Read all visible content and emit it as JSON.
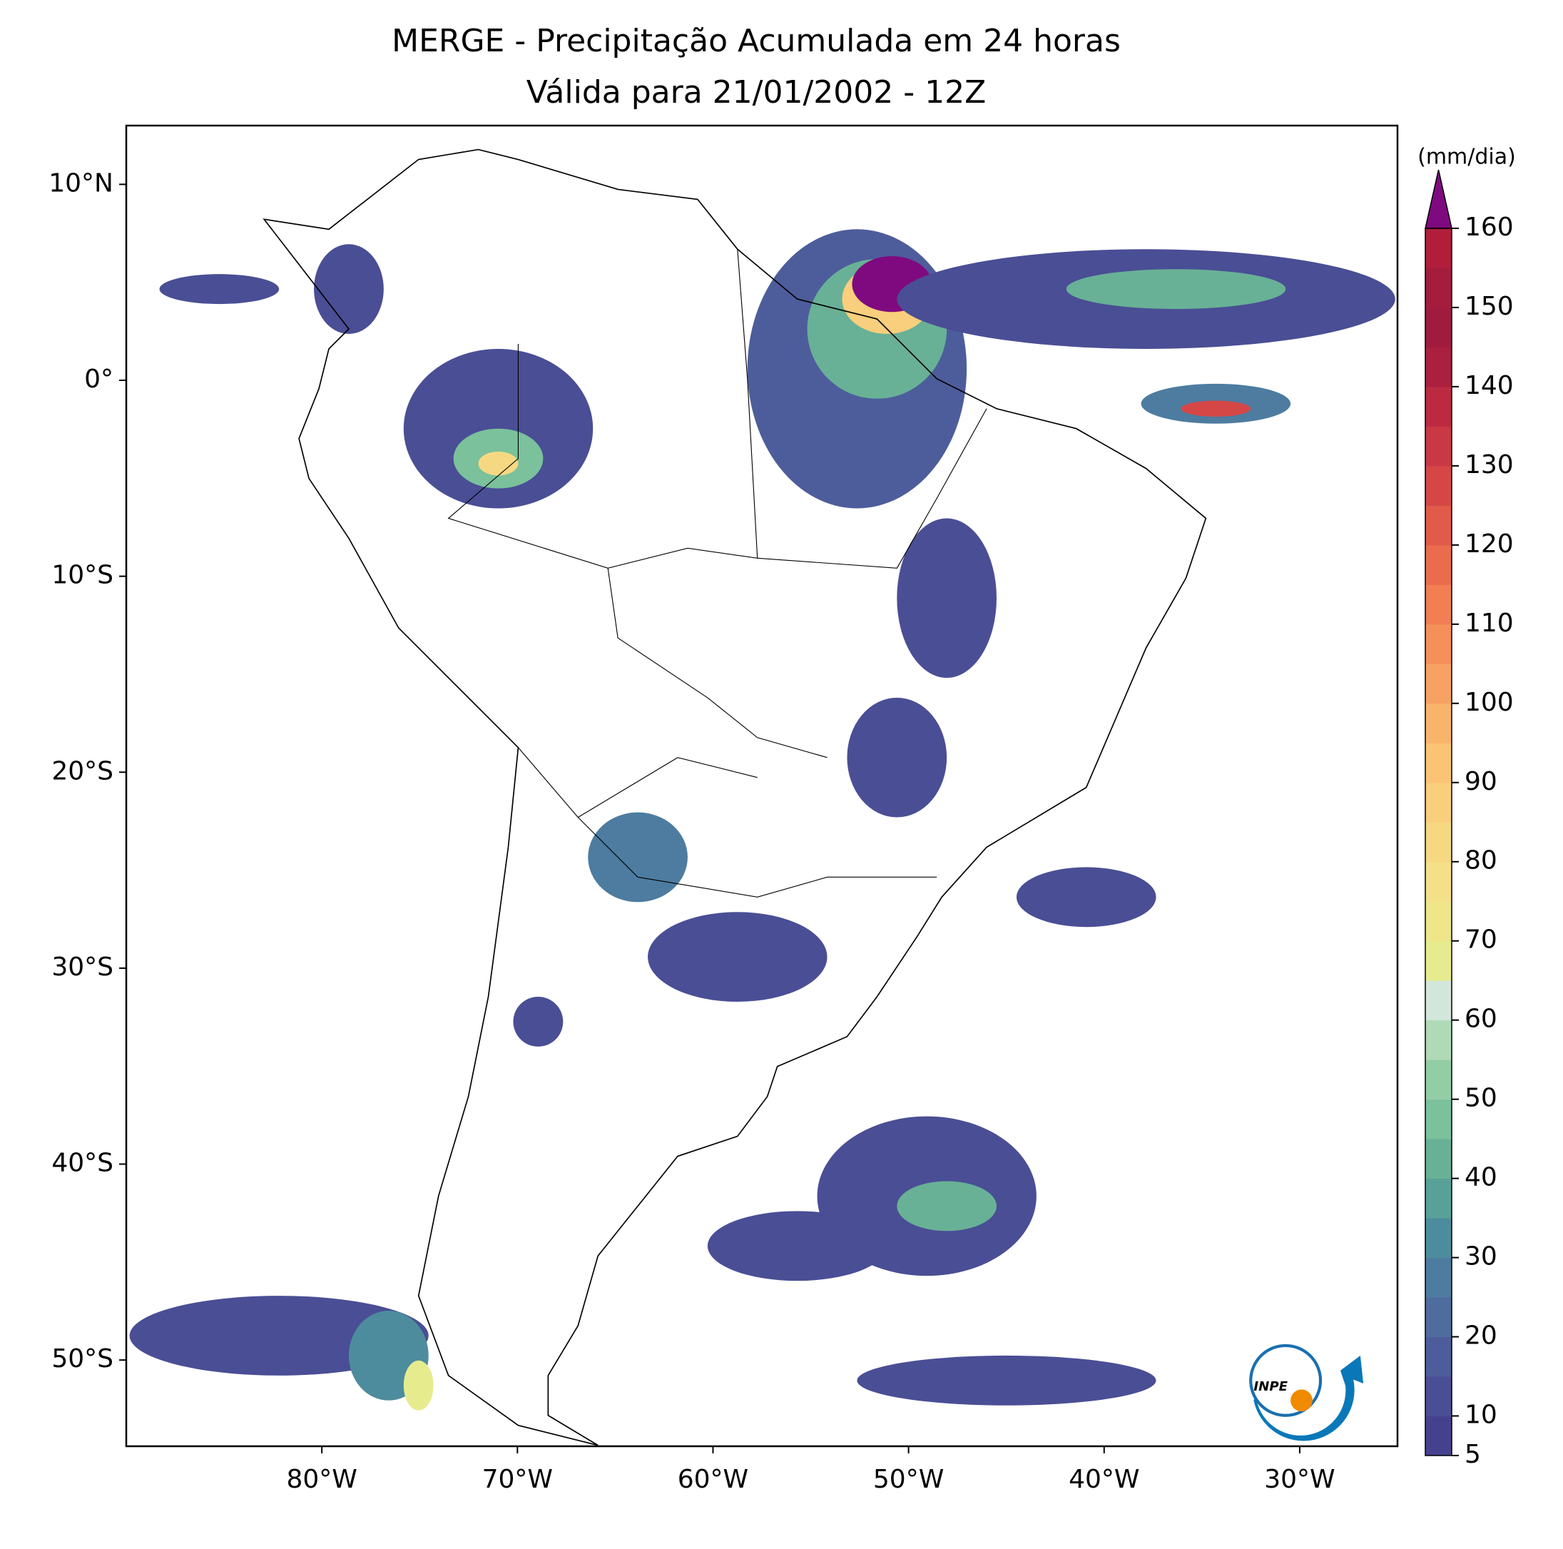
{
  "title": "MERGE - Precipitação Acumulada em 24 horas",
  "subtitle": "Válida para 21/01/2002 - 12Z",
  "map": {
    "xlim": [
      -90,
      -25
    ],
    "ylim": [
      -54.4,
      13
    ],
    "xticks": [
      {
        "value": -80,
        "label": "80°W"
      },
      {
        "value": -70,
        "label": "70°W"
      },
      {
        "value": -60,
        "label": "60°W"
      },
      {
        "value": -50,
        "label": "50°W"
      },
      {
        "value": -40,
        "label": "40°W"
      },
      {
        "value": -30,
        "label": "30°W"
      }
    ],
    "yticks": [
      {
        "value": 10,
        "label": "10°N"
      },
      {
        "value": 0,
        "label": "0°"
      },
      {
        "value": -10,
        "label": "10°S"
      },
      {
        "value": -20,
        "label": "20°S"
      },
      {
        "value": -30,
        "label": "30°S"
      },
      {
        "value": -40,
        "label": "40°S"
      },
      {
        "value": -50,
        "label": "50°S"
      }
    ]
  },
  "colorbar": {
    "label": "(mm/dia)",
    "levels": [
      5,
      10,
      15,
      20,
      25,
      30,
      35,
      40,
      45,
      50,
      55,
      60,
      65,
      70,
      75,
      80,
      85,
      90,
      95,
      100,
      105,
      110,
      115,
      120,
      125,
      130,
      135,
      140,
      145,
      150,
      155,
      160
    ],
    "ticks": [
      5,
      10,
      20,
      30,
      40,
      50,
      60,
      70,
      80,
      90,
      100,
      110,
      120,
      130,
      140,
      150,
      160
    ],
    "colors": [
      "#46418f",
      "#4a4e95",
      "#4d5d9b",
      "#4f6c9e",
      "#4d7ca0",
      "#4d8c9d",
      "#58a199",
      "#68b196",
      "#7ac19c",
      "#93cda6",
      "#afd9b7",
      "#d2e6dc",
      "#e6ec8e",
      "#eee689",
      "#f3e088",
      "#f7d882",
      "#f9ce7c",
      "#fac474",
      "#f9b46b",
      "#f7a262",
      "#f5905a",
      "#f27e54",
      "#eb6c4d",
      "#e15a4a",
      "#d54747",
      "#c93845",
      "#bb2a41",
      "#ab203e",
      "#9f1c40",
      "#a51c3c",
      "#b01e3c"
    ],
    "extend_color": "#7f0a7f"
  }
}
